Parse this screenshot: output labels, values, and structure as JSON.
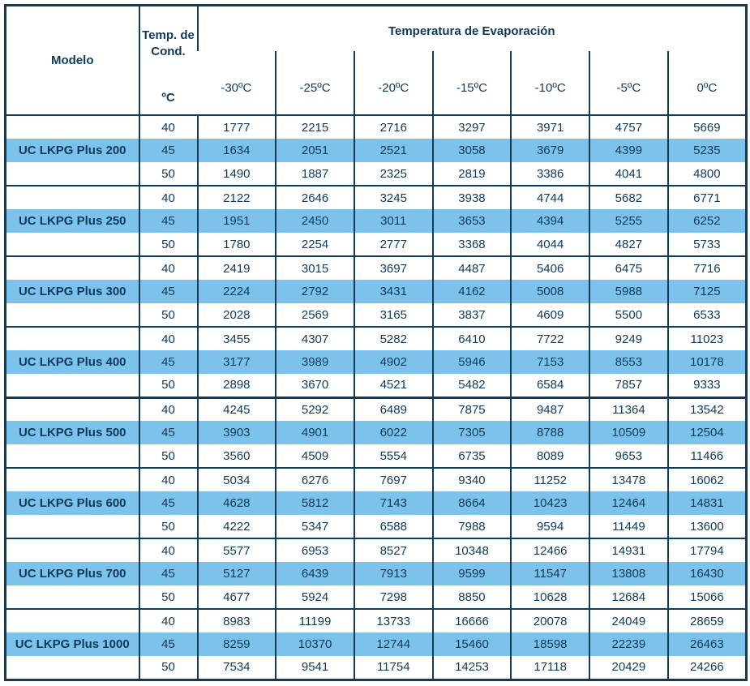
{
  "colors": {
    "navy": "#0E3B5E",
    "text_navy": "#0D3A5C",
    "highlight_blue": "#7DC2EB",
    "background": "#FFFFFF"
  },
  "table": {
    "header": {
      "model_label": "Modelo",
      "cond_line1": "Temp. de",
      "cond_line2": "Cond.",
      "cond_unit": "ºC",
      "evap_title": "Temperatura de Evaporación",
      "evap_columns": [
        "-30ºC",
        "-25ºC",
        "-20ºC",
        "-15ºC",
        "-10ºC",
        "-5ºC",
        "0ºC"
      ]
    },
    "groups": [
      {
        "model": "UC LKPG Plus 200",
        "rows": [
          {
            "cond": "40",
            "values": [
              "1777",
              "2215",
              "2716",
              "3297",
              "3971",
              "4757",
              "5669"
            ]
          },
          {
            "cond": "45",
            "values": [
              "1634",
              "2051",
              "2521",
              "3058",
              "3679",
              "4399",
              "5235"
            ]
          },
          {
            "cond": "50",
            "values": [
              "1490",
              "1887",
              "2325",
              "2819",
              "3386",
              "4041",
              "4800"
            ]
          }
        ]
      },
      {
        "model": "UC LKPG Plus 250",
        "rows": [
          {
            "cond": "40",
            "values": [
              "2122",
              "2646",
              "3245",
              "3938",
              "4744",
              "5682",
              "6771"
            ]
          },
          {
            "cond": "45",
            "values": [
              "1951",
              "2450",
              "3011",
              "3653",
              "4394",
              "5255",
              "6252"
            ]
          },
          {
            "cond": "50",
            "values": [
              "1780",
              "2254",
              "2777",
              "3368",
              "4044",
              "4827",
              "5733"
            ]
          }
        ]
      },
      {
        "model": "UC LKPG Plus 300",
        "rows": [
          {
            "cond": "40",
            "values": [
              "2419",
              "3015",
              "3697",
              "4487",
              "5406",
              "6475",
              "7716"
            ]
          },
          {
            "cond": "45",
            "values": [
              "2224",
              "2792",
              "3431",
              "4162",
              "5008",
              "5988",
              "7125"
            ]
          },
          {
            "cond": "50",
            "values": [
              "2028",
              "2569",
              "3165",
              "3837",
              "4609",
              "5500",
              "6533"
            ]
          }
        ]
      },
      {
        "model": "UC LKPG Plus 400",
        "rows": [
          {
            "cond": "40",
            "values": [
              "3455",
              "4307",
              "5282",
              "6410",
              "7722",
              "9249",
              "11023"
            ]
          },
          {
            "cond": "45",
            "values": [
              "3177",
              "3989",
              "4902",
              "5946",
              "7153",
              "8553",
              "10178"
            ]
          },
          {
            "cond": "50",
            "values": [
              "2898",
              "3670",
              "4521",
              "5482",
              "6584",
              "7857",
              "9333"
            ]
          }
        ]
      },
      {
        "model": "UC LKPG Plus 500",
        "rows": [
          {
            "cond": "40",
            "values": [
              "4245",
              "5292",
              "6489",
              "7875",
              "9487",
              "11364",
              "13542"
            ]
          },
          {
            "cond": "45",
            "values": [
              "3903",
              "4901",
              "6022",
              "7305",
              "8788",
              "10509",
              "12504"
            ]
          },
          {
            "cond": "50",
            "values": [
              "3560",
              "4509",
              "5554",
              "6735",
              "8089",
              "9653",
              "11466"
            ]
          }
        ]
      },
      {
        "model": "UC LKPG Plus 600",
        "rows": [
          {
            "cond": "40",
            "values": [
              "5034",
              "6276",
              "7697",
              "9340",
              "11252",
              "13478",
              "16062"
            ]
          },
          {
            "cond": "45",
            "values": [
              "4628",
              "5812",
              "7143",
              "8664",
              "10423",
              "12464",
              "14831"
            ]
          },
          {
            "cond": "50",
            "values": [
              "4222",
              "5347",
              "6588",
              "7988",
              "9594",
              "11449",
              "13600"
            ]
          }
        ]
      },
      {
        "model": "UC LKPG Plus 700",
        "rows": [
          {
            "cond": "40",
            "values": [
              "5577",
              "6953",
              "8527",
              "10348",
              "12466",
              "14931",
              "17794"
            ]
          },
          {
            "cond": "45",
            "values": [
              "5127",
              "6439",
              "7913",
              "9599",
              "11547",
              "13808",
              "16430"
            ]
          },
          {
            "cond": "50",
            "values": [
              "4677",
              "5924",
              "7298",
              "8850",
              "10628",
              "12684",
              "15066"
            ]
          }
        ]
      },
      {
        "model": "UC LKPG Plus 1000",
        "rows": [
          {
            "cond": "40",
            "values": [
              "8983",
              "11199",
              "13733",
              "16666",
              "20078",
              "24049",
              "28659"
            ]
          },
          {
            "cond": "45",
            "values": [
              "8259",
              "10370",
              "12744",
              "15460",
              "18598",
              "22239",
              "26463"
            ]
          },
          {
            "cond": "50",
            "values": [
              "7534",
              "9541",
              "11754",
              "14253",
              "17118",
              "20429",
              "24266"
            ]
          }
        ]
      }
    ]
  }
}
